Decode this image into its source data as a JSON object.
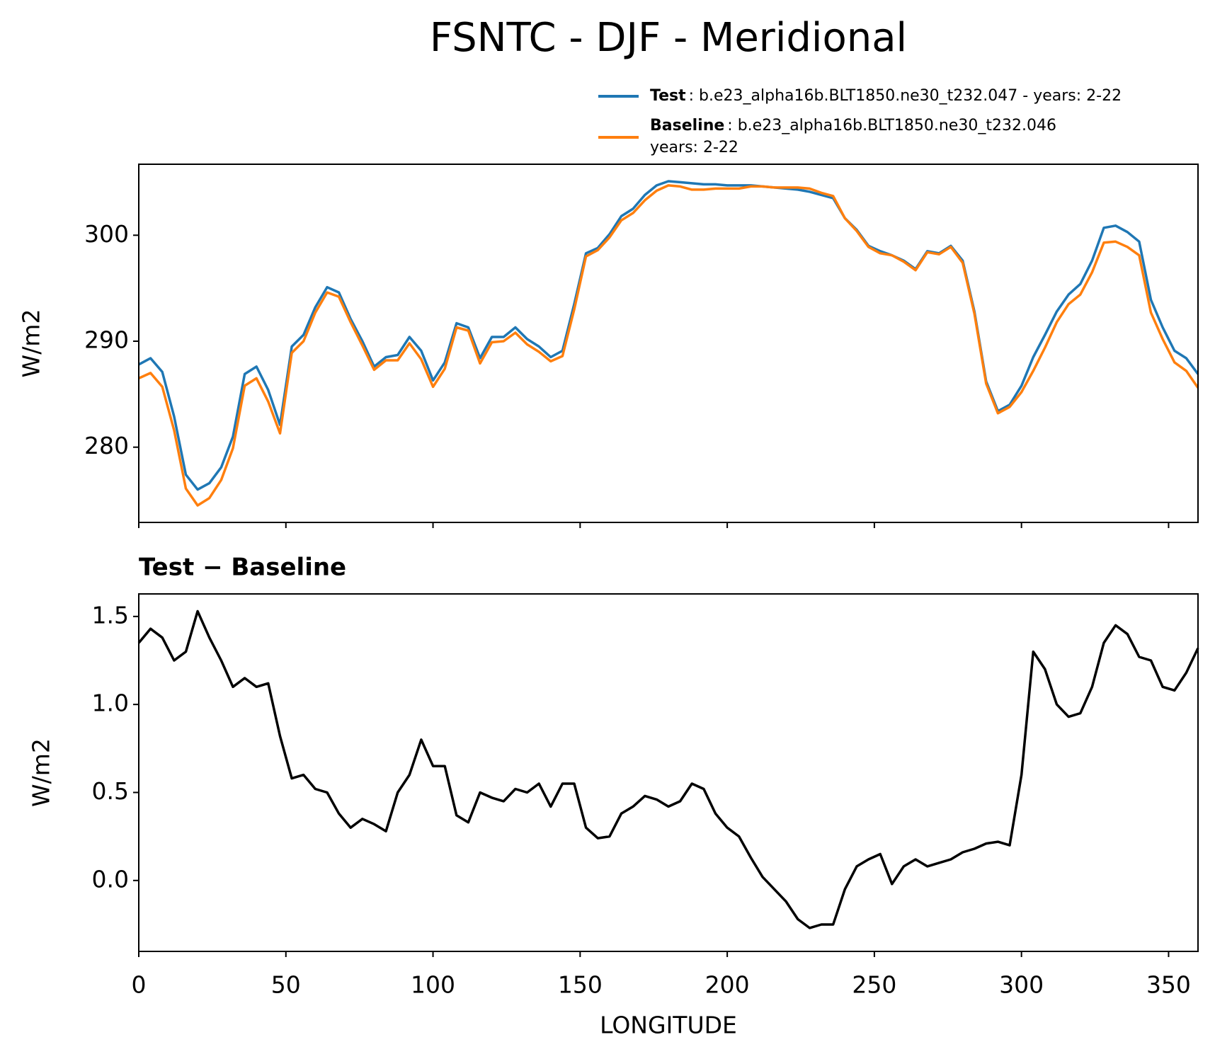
{
  "chart_data": [
    {
      "type": "line",
      "title": "FSNTC - DJF - Meridional",
      "ylabel": "W/m2",
      "x": [
        0,
        4,
        8,
        12,
        16,
        20,
        24,
        28,
        32,
        36,
        40,
        44,
        48,
        52,
        56,
        60,
        64,
        68,
        72,
        76,
        80,
        84,
        88,
        92,
        96,
        100,
        104,
        108,
        112,
        116,
        120,
        124,
        128,
        132,
        136,
        140,
        144,
        148,
        152,
        156,
        160,
        164,
        168,
        172,
        176,
        180,
        184,
        188,
        192,
        196,
        200,
        204,
        208,
        212,
        216,
        220,
        224,
        228,
        232,
        236,
        240,
        244,
        248,
        252,
        256,
        260,
        264,
        268,
        272,
        276,
        280,
        284,
        288,
        292,
        296,
        300,
        304,
        308,
        312,
        316,
        320,
        324,
        328,
        332,
        336,
        340,
        344,
        348,
        352,
        356,
        360
      ],
      "series": [
        {
          "name": "Test",
          "description_lines": [
            ": b.e23_alpha16b.BLT1850.ne30_t232.047 - years: 2-22"
          ],
          "color": "#1f77b4",
          "values": [
            287.8,
            288.4,
            287.1,
            282.9,
            277.4,
            276.0,
            276.6,
            278.1,
            281.0,
            286.9,
            287.6,
            285.4,
            282.1,
            289.5,
            290.6,
            293.2,
            295.1,
            294.6,
            292.1,
            290.0,
            287.6,
            288.5,
            288.7,
            290.4,
            289.1,
            286.3,
            288.0,
            291.7,
            291.3,
            288.4,
            290.4,
            290.4,
            291.3,
            290.2,
            289.5,
            288.5,
            289.1,
            293.5,
            298.3,
            298.8,
            300.1,
            301.8,
            302.5,
            303.8,
            304.7,
            305.1,
            305.0,
            304.9,
            304.8,
            304.8,
            304.7,
            304.7,
            304.7,
            304.6,
            304.5,
            304.4,
            304.3,
            304.1,
            303.8,
            303.5,
            301.6,
            300.5,
            299.0,
            298.5,
            298.1,
            297.6,
            296.8,
            298.5,
            298.3,
            299.0,
            297.6,
            292.8,
            286.2,
            283.4,
            284.0,
            285.8,
            288.5,
            290.6,
            292.8,
            294.4,
            295.4,
            297.6,
            300.7,
            300.9,
            300.3,
            299.4,
            293.9,
            291.3,
            289.1,
            288.4,
            286.9
          ]
        },
        {
          "name": "Baseline",
          "description_lines": [
            ": b.e23_alpha16b.BLT1850.ne30_t232.046",
            "years: 2-22"
          ],
          "color": "#ff7f0e",
          "values": [
            286.5,
            287.0,
            285.7,
            281.6,
            276.1,
            274.5,
            275.2,
            276.9,
            279.9,
            285.8,
            286.5,
            284.3,
            281.3,
            288.9,
            290.0,
            292.7,
            294.6,
            294.2,
            291.8,
            289.6,
            287.3,
            288.2,
            288.2,
            289.8,
            288.3,
            285.7,
            287.4,
            291.3,
            291.0,
            287.9,
            289.9,
            290.0,
            290.8,
            289.7,
            289.0,
            288.1,
            288.6,
            293.0,
            298.0,
            298.6,
            299.8,
            301.4,
            302.1,
            303.3,
            304.2,
            304.7,
            304.6,
            304.3,
            304.3,
            304.4,
            304.4,
            304.4,
            304.6,
            304.6,
            304.5,
            304.5,
            304.5,
            304.4,
            304.0,
            303.7,
            301.6,
            300.4,
            298.9,
            298.3,
            298.1,
            297.5,
            296.7,
            298.4,
            298.2,
            298.9,
            297.4,
            292.6,
            286.0,
            283.2,
            283.8,
            285.2,
            287.2,
            289.4,
            291.8,
            293.5,
            294.4,
            296.5,
            299.3,
            299.4,
            298.9,
            298.1,
            292.7,
            290.2,
            288.0,
            287.2,
            285.6
          ]
        }
      ],
      "xlim": [
        0,
        360
      ],
      "xticks": [
        0,
        50,
        100,
        150,
        200,
        250,
        300,
        350
      ],
      "show_xtick_labels": false,
      "ylim": [
        272.9,
        306.7
      ],
      "yticks": [
        280,
        290,
        300
      ]
    },
    {
      "type": "line",
      "title": "Test − Baseline",
      "ylabel": "W/m2",
      "xlabel": "LONGITUDE",
      "x": [
        0,
        4,
        8,
        12,
        16,
        20,
        24,
        28,
        32,
        36,
        40,
        44,
        48,
        52,
        56,
        60,
        64,
        68,
        72,
        76,
        80,
        84,
        88,
        92,
        96,
        100,
        104,
        108,
        112,
        116,
        120,
        124,
        128,
        132,
        136,
        140,
        144,
        148,
        152,
        156,
        160,
        164,
        168,
        172,
        176,
        180,
        184,
        188,
        192,
        196,
        200,
        204,
        208,
        212,
        216,
        220,
        224,
        228,
        232,
        236,
        240,
        244,
        248,
        252,
        256,
        260,
        264,
        268,
        272,
        276,
        280,
        284,
        288,
        292,
        296,
        300,
        304,
        308,
        312,
        316,
        320,
        324,
        328,
        332,
        336,
        340,
        344,
        348,
        352,
        356,
        360
      ],
      "series": [
        {
          "name": "Test − Baseline",
          "color": "#000000",
          "values": [
            1.35,
            1.43,
            1.38,
            1.25,
            1.3,
            1.53,
            1.38,
            1.25,
            1.1,
            1.15,
            1.1,
            1.12,
            0.82,
            0.58,
            0.6,
            0.52,
            0.5,
            0.38,
            0.3,
            0.35,
            0.32,
            0.28,
            0.5,
            0.6,
            0.8,
            0.65,
            0.65,
            0.37,
            0.33,
            0.5,
            0.47,
            0.45,
            0.52,
            0.5,
            0.55,
            0.42,
            0.55,
            0.55,
            0.3,
            0.24,
            0.25,
            0.38,
            0.42,
            0.48,
            0.46,
            0.42,
            0.45,
            0.55,
            0.52,
            0.38,
            0.3,
            0.25,
            0.13,
            0.02,
            -0.05,
            -0.12,
            -0.22,
            -0.27,
            -0.25,
            -0.25,
            -0.05,
            0.08,
            0.12,
            0.15,
            -0.02,
            0.08,
            0.12,
            0.08,
            0.1,
            0.12,
            0.16,
            0.18,
            0.21,
            0.22,
            0.2,
            0.6,
            1.3,
            1.2,
            1.0,
            0.93,
            0.95,
            1.1,
            1.35,
            1.45,
            1.4,
            1.27,
            1.25,
            1.1,
            1.08,
            1.18,
            1.32
          ]
        }
      ],
      "xlim": [
        0,
        360
      ],
      "xticks": [
        0,
        50,
        100,
        150,
        200,
        250,
        300,
        350
      ],
      "show_xtick_labels": true,
      "ylim": [
        -0.403,
        1.628
      ],
      "yticks": [
        {
          "value": 0,
          "label": "0.0"
        },
        0.5,
        {
          "value": 1,
          "label": "1.0"
        },
        1.5
      ]
    }
  ]
}
